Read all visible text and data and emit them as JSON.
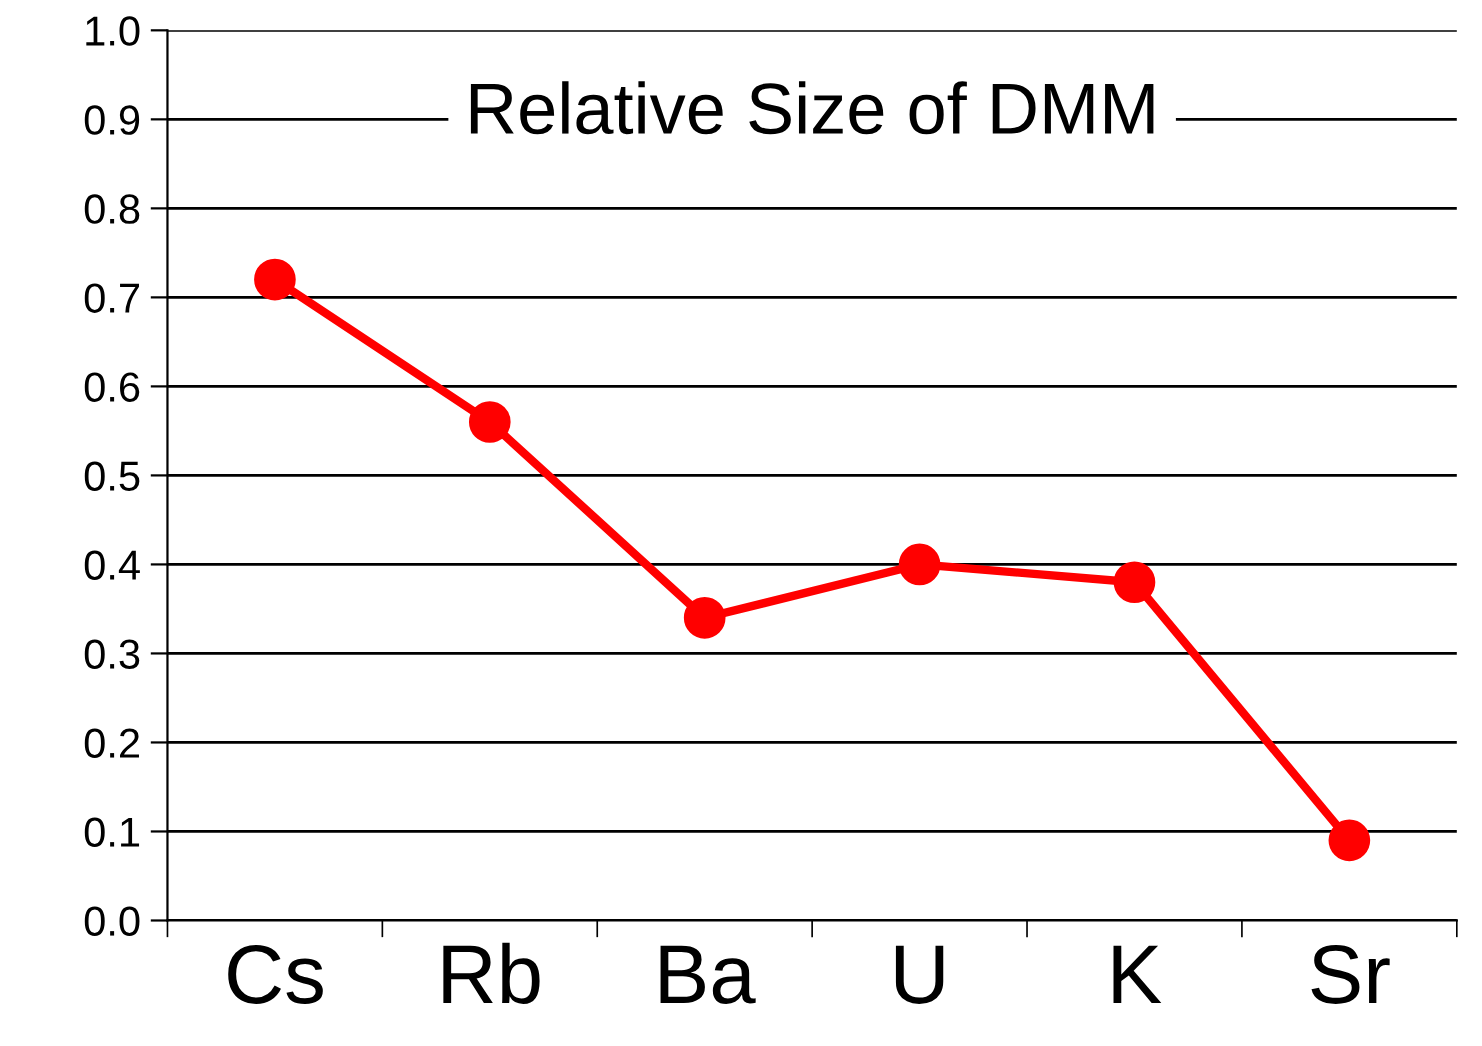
{
  "chart_data": {
    "type": "line",
    "title": "Relative Size of DMM",
    "categories": [
      "Cs",
      "Rb",
      "Ba",
      "U",
      "K",
      "Sr"
    ],
    "series": [
      {
        "color": "#ff0000",
        "values": [
          0.72,
          0.56,
          0.34,
          0.4,
          0.38,
          0.09
        ]
      }
    ],
    "ylim": [
      0,
      1
    ],
    "yticks": [
      {
        "value": 0,
        "label": "0.0"
      },
      0.1,
      0.2,
      0.3,
      0.4,
      0.5,
      0.6,
      0.7,
      0.8,
      0.9,
      {
        "value": 1,
        "label": "1.0"
      }
    ],
    "grid": "y",
    "marker": "circle",
    "line_style": "solid",
    "legend": false
  }
}
